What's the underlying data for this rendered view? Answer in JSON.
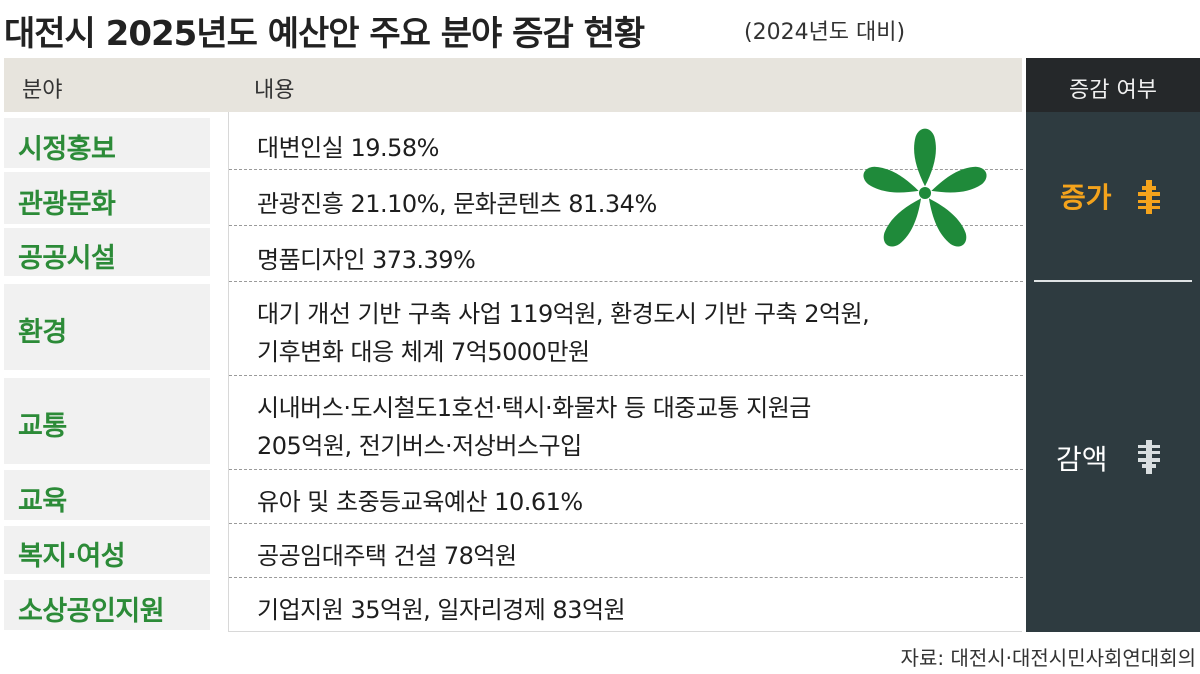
{
  "header": {
    "title": "대전시 2025년도 예산안 주요 분야 증감 현황",
    "subtitle": "(2024년도 대비)"
  },
  "columns": {
    "category": "분야",
    "content": "내용",
    "change": "증감 여부"
  },
  "rows": [
    {
      "category": "시정홍보",
      "lines": [
        "대변인실 19.58%"
      ]
    },
    {
      "category": "관광문화",
      "lines": [
        "관광진흥 21.10%, 문화콘텐츠 81.34%"
      ]
    },
    {
      "category": "공공시설",
      "lines": [
        "명품디자인 373.39%"
      ]
    },
    {
      "category": "환경",
      "lines": [
        "대기 개선 기반 구축 사업 119억원, 환경도시 기반 구축 2억원,",
        "기후변화 대응 체계 7억5000만원"
      ]
    },
    {
      "category": "교통",
      "lines": [
        "시내버스·도시철도1호선·택시·화물차 등 대중교통 지원금",
        "205억원, 전기버스·저상버스구입"
      ]
    },
    {
      "category": "교육",
      "lines": [
        "유아 및 초중등교육예산 10.61%"
      ]
    },
    {
      "category": "복지·여성",
      "lines": [
        "공공임대주택 건설 78억원"
      ]
    },
    {
      "category": "소상공인지원",
      "lines": [
        "기업지원 35억원, 일자리경제 83억원"
      ]
    }
  ],
  "change": {
    "increase_label": "증가",
    "decrease_label": "감액",
    "increase_color": "#f4a31c",
    "decrease_color": "#ffffff",
    "increase_icon": "up-arrow-icon",
    "decrease_icon": "down-arrow-icon"
  },
  "logo": {
    "icon": "daejeon-city-emblem-icon",
    "color": "#1f8a3a"
  },
  "source": "자료: 대전시·대전시민사회연대회의"
}
